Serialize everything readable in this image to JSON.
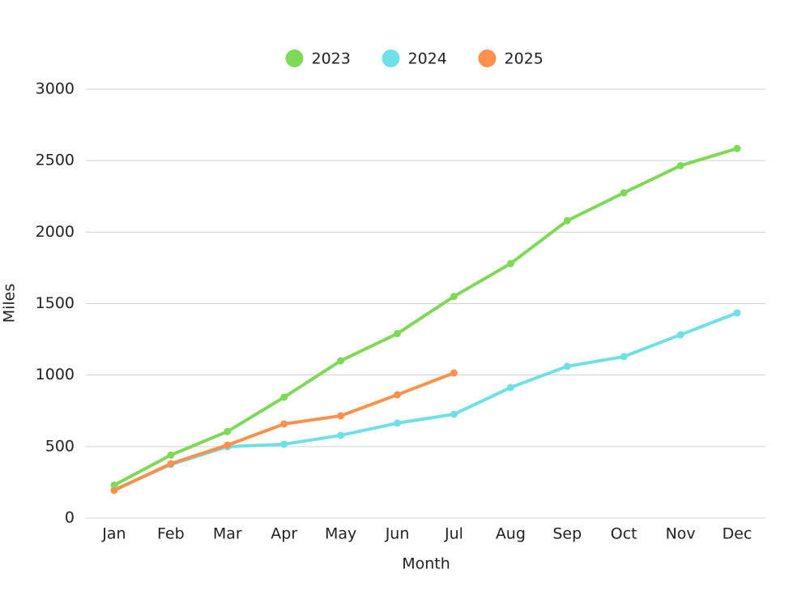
{
  "chart_data": {
    "type": "line",
    "x_label": "Month",
    "y_label": "Miles",
    "categories": [
      "Jan",
      "Feb",
      "Mar",
      "Apr",
      "May",
      "Jun",
      "Jul",
      "Aug",
      "Sep",
      "Oct",
      "Nov",
      "Dec"
    ],
    "series": [
      {
        "name": "2023",
        "color": "#7ed957",
        "values": [
          230,
          440,
          605,
          845,
          1100,
          1290,
          1550,
          1780,
          2080,
          2275,
          2465,
          2585
        ]
      },
      {
        "name": "2024",
        "color": "#6ee0e6",
        "values": [
          198,
          374,
          499,
          516,
          578,
          664,
          726,
          913,
          1061,
          1129,
          1282,
          1435
        ]
      },
      {
        "name": "2025",
        "color": "#ff914d",
        "values": [
          193,
          380,
          510,
          658,
          715,
          862,
          1015,
          null,
          null,
          null,
          null,
          null
        ]
      }
    ],
    "ylim": [
      0,
      3000
    ],
    "yticks": [
      0,
      500,
      1000,
      1500,
      2000,
      2500,
      3000
    ],
    "grid": true,
    "legend": "top"
  }
}
